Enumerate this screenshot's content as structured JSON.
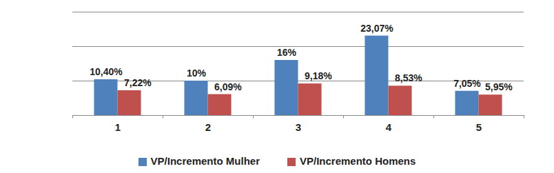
{
  "chart_data": {
    "type": "bar",
    "categories": [
      "1",
      "2",
      "3",
      "4",
      "5"
    ],
    "series": [
      {
        "name": "VP/Incremento Mulher",
        "color": "#4f81bd",
        "values": [
          10.4,
          10,
          16,
          23.07,
          7.05
        ],
        "value_labels": [
          "10,40%",
          "10%",
          "16%",
          "23,07%",
          "7,05%"
        ]
      },
      {
        "name": "VP/Incremento Homens",
        "color": "#c0504d",
        "values": [
          7.22,
          6.09,
          9.18,
          8.53,
          5.95
        ],
        "value_labels": [
          "7,22%",
          "6,09%",
          "9,18%",
          "8,53%",
          "5,95%"
        ]
      }
    ],
    "ylim": [
      0,
      30
    ],
    "yticks": [
      0,
      10,
      20,
      30
    ],
    "grid": true,
    "data_labels": true,
    "tick_labels": "x",
    "legend": "bottom"
  }
}
